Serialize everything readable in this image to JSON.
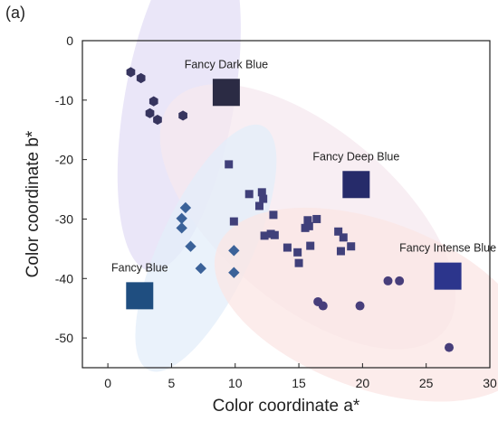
{
  "panel_label": "(a)",
  "chart_data": {
    "type": "scatter",
    "xlabel": "Color coordinate a*",
    "ylabel": "Color coordinate b*",
    "xlim": [
      -2,
      30
    ],
    "ylim": [
      -55,
      0
    ],
    "xticks": [
      0,
      5,
      10,
      15,
      20,
      25,
      30
    ],
    "yticks": [
      0,
      -10,
      -20,
      -30,
      -40,
      -50
    ],
    "grid": false,
    "groups": [
      {
        "name": "Fancy Dark Blue",
        "marker": "hexagon",
        "marker_color": "#37355f",
        "swatch_color": "#2b2b44",
        "swatch_at": [
          9.3,
          -8.7
        ],
        "ellipse_color": "#e3ddf5",
        "ellipse": {
          "cx": 5.6,
          "cy": -10.3,
          "rx": 13.5,
          "ry": 4.3,
          "angle": -80
        },
        "points": [
          [
            1.8,
            -5.3
          ],
          [
            2.6,
            -6.3
          ],
          [
            3.6,
            -10.2
          ],
          [
            3.3,
            -12.2
          ],
          [
            3.9,
            -13.3
          ],
          [
            5.9,
            -12.6
          ]
        ]
      },
      {
        "name": "Fancy Deep Blue",
        "marker": "square",
        "marker_color": "#40407a",
        "swatch_color": "#262b6a",
        "swatch_at": [
          19.5,
          -24.2
        ],
        "ellipse_color": "#f6e8ef",
        "ellipse": {
          "cx": 15.7,
          "cy": -29.6,
          "rx": 14.0,
          "ry": 6.9,
          "angle": 40
        },
        "points": [
          [
            9.5,
            -20.8
          ],
          [
            9.9,
            -30.4
          ],
          [
            11.1,
            -25.8
          ],
          [
            11.9,
            -27.8
          ],
          [
            12.1,
            -25.5
          ],
          [
            12.2,
            -26.6
          ],
          [
            12.3,
            -32.8
          ],
          [
            12.8,
            -32.5
          ],
          [
            13.0,
            -29.3
          ],
          [
            13.1,
            -32.7
          ],
          [
            14.1,
            -34.8
          ],
          [
            14.9,
            -35.6
          ],
          [
            15.0,
            -37.4
          ],
          [
            15.5,
            -31.5
          ],
          [
            15.7,
            -30.2
          ],
          [
            15.8,
            -31.2
          ],
          [
            15.9,
            -34.5
          ],
          [
            16.4,
            -30.0
          ],
          [
            18.1,
            -32.1
          ],
          [
            18.3,
            -35.4
          ],
          [
            18.5,
            -33.1
          ],
          [
            19.1,
            -34.6
          ]
        ]
      },
      {
        "name": "Fancy Blue",
        "marker": "diamond",
        "marker_color": "#3b6299",
        "swatch_color": "#1f4e80",
        "swatch_at": [
          2.5,
          -42.9
        ],
        "ellipse_color": "#e3eefa",
        "ellipse": {
          "cx": 7.7,
          "cy": -34.9,
          "rx": 10.6,
          "ry": 3.6,
          "angle": -65
        },
        "points": [
          [
            6.1,
            -28.1
          ],
          [
            5.8,
            -29.9
          ],
          [
            5.8,
            -31.5
          ],
          [
            6.5,
            -34.6
          ],
          [
            7.3,
            -38.3
          ],
          [
            9.9,
            -35.3
          ],
          [
            9.9,
            -39.0
          ]
        ]
      },
      {
        "name": "Fancy Intense Blue",
        "marker": "circle",
        "marker_color": "#473e7b",
        "swatch_color": "#2c358c",
        "swatch_at": [
          26.7,
          -39.6
        ],
        "ellipse_color": "#fbe5e4",
        "ellipse": {
          "cx": 20.8,
          "cy": -44.4,
          "rx": 13.0,
          "ry": 6.6,
          "angle": 20
        },
        "points": [
          [
            22.0,
            -40.4
          ],
          [
            22.9,
            -40.4
          ],
          [
            16.5,
            -43.9
          ],
          [
            16.9,
            -44.6
          ],
          [
            19.8,
            -44.6
          ],
          [
            26.8,
            -51.6
          ]
        ]
      }
    ]
  }
}
